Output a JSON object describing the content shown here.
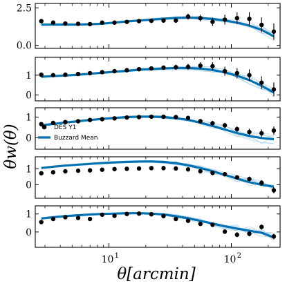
{
  "chart_data": {
    "type": "line",
    "xscale": "log",
    "xlim": [
      2.5,
      250
    ],
    "xlabel": "θ[arcmin]",
    "ylabel": "θw(θ)",
    "x_ticks": [
      {
        "value": 10,
        "label": "10¹"
      },
      {
        "value": 100,
        "label": "10²"
      }
    ],
    "x": [
      2.8,
      3.5,
      4.4,
      5.6,
      7.0,
      8.8,
      11.1,
      14.0,
      17.6,
      22.2,
      27.9,
      35.2,
      44.3,
      55.8,
      70.2,
      88.4,
      111.3,
      140.2,
      176.5,
      222.2
    ],
    "legend": {
      "location": "lower left",
      "panel": 3,
      "entries": [
        "DES Y1",
        "Buzzard Mean"
      ]
    },
    "colors": {
      "data": "#000000",
      "mean": "#0072B2",
      "realizations": "#a9cfe8"
    },
    "panels": [
      {
        "ylim": [
          -0.2,
          2.8
        ],
        "yticks": [
          {
            "value": 0.0,
            "label": "0.0"
          },
          {
            "value": 2.5,
            "label": "2.5"
          }
        ],
        "series": [
          {
            "name": "DES Y1",
            "values": [
              1.62,
              1.52,
              1.46,
              1.44,
              1.42,
              1.52,
              1.52,
              1.57,
              1.62,
              1.64,
              1.66,
              1.66,
              1.92,
              1.82,
              1.57,
              1.72,
              1.82,
              1.77,
              1.37,
              0.92
            ],
            "errors": [
              0.07,
              0.07,
              0.06,
              0.06,
              0.06,
              0.07,
              0.08,
              0.09,
              0.1,
              0.12,
              0.14,
              0.16,
              0.2,
              0.23,
              0.28,
              0.33,
              0.39,
              0.45,
              0.5,
              0.55
            ]
          },
          {
            "name": "Buzzard Mean",
            "values": [
              1.39,
              1.39,
              1.39,
              1.39,
              1.41,
              1.45,
              1.52,
              1.6,
              1.66,
              1.72,
              1.78,
              1.83,
              1.85,
              1.83,
              1.76,
              1.66,
              1.52,
              1.32,
              1.04,
              0.6
            ]
          }
        ]
      },
      {
        "ylim": [
          -0.3,
          1.9
        ],
        "yticks": [
          {
            "value": 0,
            "label": "0"
          },
          {
            "value": 1,
            "label": "1"
          }
        ],
        "series": [
          {
            "name": "DES Y1",
            "values": [
              1.02,
              1.0,
              1.02,
              1.06,
              1.1,
              1.15,
              1.2,
              1.25,
              1.3,
              1.34,
              1.38,
              1.4,
              1.42,
              1.48,
              1.45,
              1.2,
              1.1,
              1.0,
              0.62,
              0.28
            ],
            "errors": [
              0.05,
              0.05,
              0.05,
              0.05,
              0.06,
              0.06,
              0.07,
              0.08,
              0.09,
              0.1,
              0.11,
              0.13,
              0.15,
              0.17,
              0.2,
              0.23,
              0.26,
              0.29,
              0.32,
              0.35
            ]
          },
          {
            "name": "Buzzard Mean",
            "values": [
              0.92,
              0.95,
              0.98,
              1.02,
              1.07,
              1.12,
              1.17,
              1.22,
              1.27,
              1.31,
              1.34,
              1.36,
              1.36,
              1.33,
              1.26,
              1.14,
              0.97,
              0.75,
              0.46,
              0.12
            ]
          }
        ]
      },
      {
        "ylim": [
          -0.55,
          1.45
        ],
        "yticks": [
          {
            "value": 0,
            "label": "0"
          },
          {
            "value": 1,
            "label": "1"
          }
        ],
        "series": [
          {
            "name": "DES Y1",
            "values": [
              0.66,
              0.72,
              0.76,
              0.8,
              0.86,
              0.9,
              0.94,
              0.98,
              1.0,
              1.02,
              1.02,
              1.0,
              0.96,
              0.8,
              0.7,
              0.6,
              0.42,
              0.28,
              0.22,
              0.35
            ],
            "errors": [
              0.04,
              0.04,
              0.04,
              0.04,
              0.05,
              0.05,
              0.05,
              0.06,
              0.06,
              0.07,
              0.08,
              0.09,
              0.1,
              0.11,
              0.12,
              0.13,
              0.14,
              0.16,
              0.18,
              0.2
            ]
          },
          {
            "name": "Buzzard Mean",
            "values": [
              0.6,
              0.67,
              0.74,
              0.8,
              0.86,
              0.91,
              0.96,
              1.0,
              1.02,
              1.02,
              1.0,
              0.95,
              0.86,
              0.73,
              0.57,
              0.4,
              0.23,
              0.09,
              -0.01,
              -0.07
            ]
          }
        ]
      },
      {
        "ylim": [
          -0.85,
          1.75
        ],
        "yticks": [
          {
            "value": 0,
            "label": "0"
          },
          {
            "value": 1,
            "label": "1"
          }
        ],
        "series": [
          {
            "name": "DES Y1",
            "values": [
              0.72,
              0.78,
              0.84,
              0.88,
              0.9,
              0.94,
              0.98,
              1.0,
              1.02,
              1.04,
              1.04,
              1.02,
              0.96,
              0.84,
              0.74,
              0.66,
              0.46,
              0.36,
              0.12,
              -0.35
            ],
            "errors": [
              0.04,
              0.04,
              0.04,
              0.04,
              0.05,
              0.05,
              0.05,
              0.06,
              0.06,
              0.07,
              0.08,
              0.09,
              0.1,
              0.11,
              0.12,
              0.13,
              0.14,
              0.15,
              0.17,
              0.19
            ]
          },
          {
            "name": "Buzzard Mean",
            "values": [
              1.05,
              1.13,
              1.2,
              1.26,
              1.31,
              1.36,
              1.4,
              1.43,
              1.45,
              1.46,
              1.43,
              1.35,
              1.22,
              1.05,
              0.85,
              0.62,
              0.38,
              0.16,
              0.0,
              -0.12
            ]
          }
        ]
      },
      {
        "ylim": [
          -0.85,
          1.45
        ],
        "yticks": [
          {
            "value": 0,
            "label": "0"
          },
          {
            "value": 1,
            "label": "1"
          }
        ],
        "series": [
          {
            "name": "DES Y1",
            "values": [
              0.55,
              0.72,
              0.82,
              0.78,
              0.72,
              0.96,
              0.9,
              1.0,
              1.02,
              0.98,
              0.88,
              0.72,
              0.62,
              0.45,
              0.4,
              0.02,
              -0.15,
              -0.1,
              0.28,
              -0.25
            ],
            "errors": [
              0.05,
              0.05,
              0.05,
              0.05,
              0.06,
              0.06,
              0.07,
              0.07,
              0.08,
              0.08,
              0.09,
              0.1,
              0.11,
              0.12,
              0.12,
              0.13,
              0.14,
              0.14,
              0.15,
              0.16
            ]
          },
          {
            "name": "Buzzard Mean",
            "values": [
              0.75,
              0.82,
              0.88,
              0.93,
              0.97,
              1.0,
              1.02,
              1.04,
              1.04,
              1.02,
              0.97,
              0.88,
              0.76,
              0.62,
              0.47,
              0.32,
              0.19,
              0.07,
              -0.04,
              -0.3
            ]
          }
        ]
      }
    ]
  }
}
